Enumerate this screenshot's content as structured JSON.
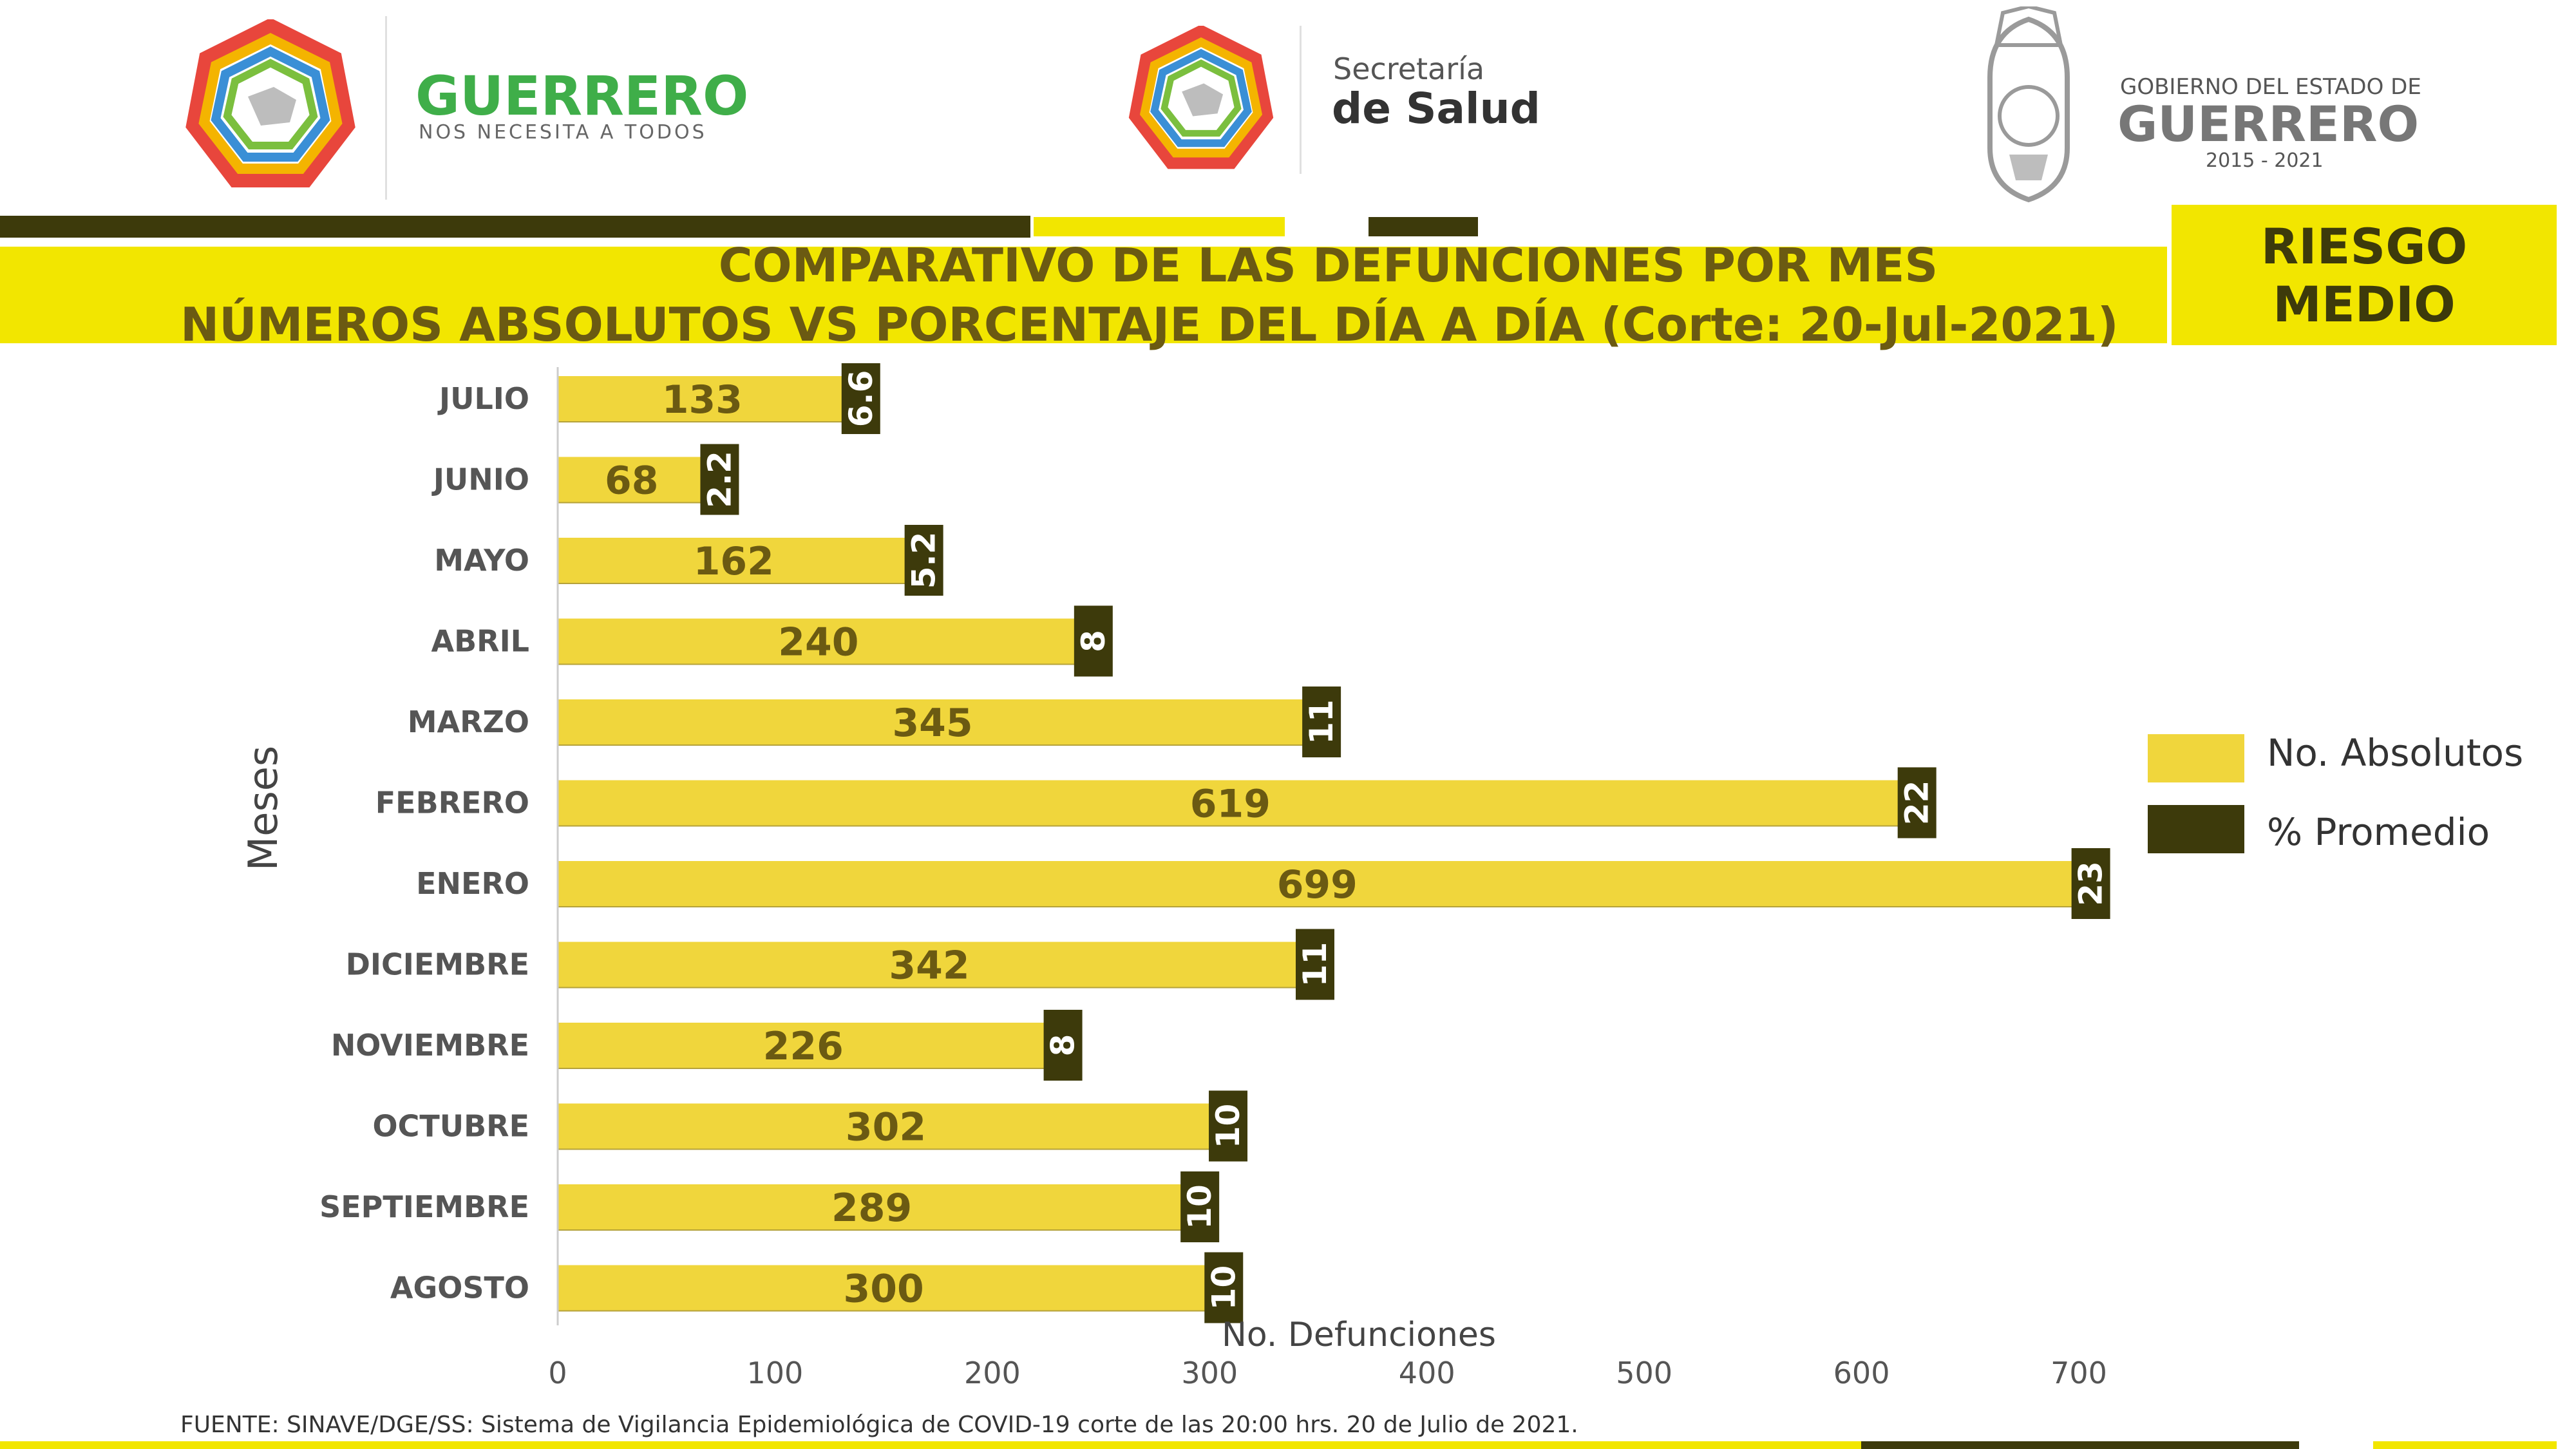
{
  "header": {
    "logo1_title": "GUERRERO",
    "logo1_sub": "NOS NECESITA A TODOS",
    "logo2_line1": "Secretaría",
    "logo2_line2": "de Salud",
    "logo3_line1": "GOBIERNO DEL ESTADO DE",
    "logo3_line2": "GUERRERO",
    "logo3_line3": "2015 - 2021"
  },
  "title": {
    "line1": "COMPARATIVO DE LAS DEFUNCIONES POR MES",
    "line2": "NÚMEROS ABSOLUTOS VS PORCENTAJE DEL DÍA A DÍA   (Corte: 20-Jul-2021)"
  },
  "risk_badge": {
    "line1": "RIESGO",
    "line2": "MEDIO"
  },
  "footer_text": "FUENTE: SINAVE/DGE/SS: Sistema de Vigilancia Epidemiológica de COVID-19 corte de las 20:00 hrs. 20 de Julio de 2021.",
  "colors": {
    "yellow": "#f0d63c",
    "bright_yellow": "#f2e600",
    "dark": "#3d3a0b",
    "title_text": "#6b5a12",
    "label_text": "#555555"
  },
  "chart_data": {
    "type": "bar",
    "orientation": "horizontal",
    "categories": [
      "JULIO",
      "JUNIO",
      "MAYO",
      "ABRIL",
      "MARZO",
      "FEBRERO",
      "ENERO",
      "DICIEMBRE",
      "NOVIEMBRE",
      "OCTUBRE",
      "SEPTIEMBRE",
      "AGOSTO"
    ],
    "series": [
      {
        "name": "No. Absolutos",
        "values": [
          133,
          68,
          162,
          240,
          345,
          619,
          699,
          342,
          226,
          302,
          289,
          300
        ]
      },
      {
        "name": "% Promedio",
        "values": [
          6.6,
          2.2,
          5.2,
          8,
          11,
          22,
          23,
          11,
          8,
          10,
          10,
          10
        ]
      }
    ],
    "xlabel": "No. Defunciones",
    "ylabel": "Meses",
    "xlim": [
      0,
      700
    ],
    "xticks": [
      "0",
      "100",
      "200",
      "300",
      "400",
      "500",
      "600",
      "700"
    ],
    "legend_position": "right"
  }
}
